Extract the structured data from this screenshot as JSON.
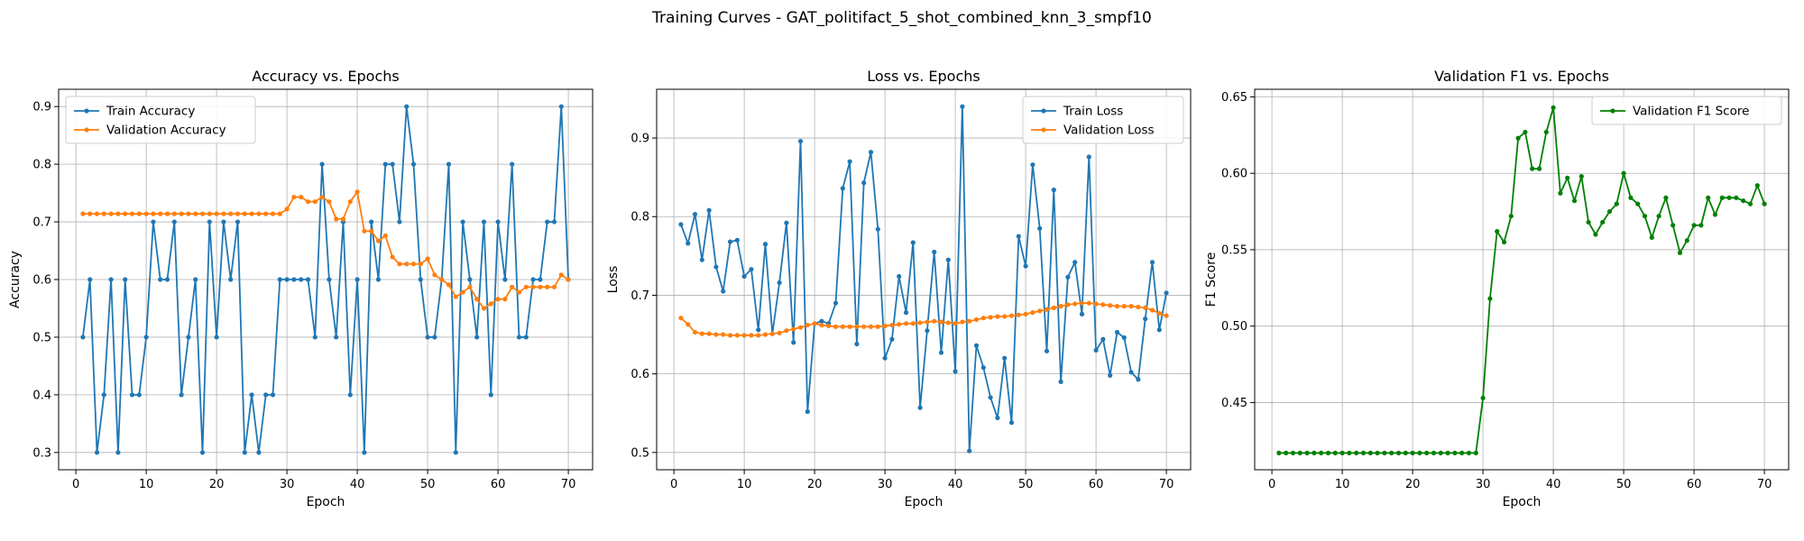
{
  "figure": {
    "title": "Training Curves - GAT_politifact_5_shot_combined_knn_3_smpf10"
  },
  "chart_data": [
    {
      "type": "line",
      "title": "Accuracy vs. Epochs",
      "xlabel": "Epoch",
      "ylabel": "Accuracy",
      "xlim": [
        -2.45,
        73.45
      ],
      "ylim": [
        0.27,
        0.93
      ],
      "xticks": [
        0,
        10,
        20,
        30,
        40,
        50,
        60,
        70
      ],
      "yticks": [
        0.3,
        0.4,
        0.5,
        0.6,
        0.7,
        0.8,
        0.9
      ],
      "ytick_labels": [
        "0.3",
        "0.4",
        "0.5",
        "0.6",
        "0.7",
        "0.8",
        "0.9"
      ],
      "grid": true,
      "legend": "upper-left",
      "x_start": 1,
      "series": [
        {
          "name": "Train Accuracy",
          "color": "#1f77b4",
          "values": [
            0.5,
            0.6,
            0.3,
            0.4,
            0.6,
            0.3,
            0.6,
            0.4,
            0.4,
            0.5,
            0.7,
            0.6,
            0.6,
            0.7,
            0.4,
            0.5,
            0.6,
            0.3,
            0.7,
            0.5,
            0.7,
            0.6,
            0.7,
            0.3,
            0.4,
            0.3,
            0.4,
            0.4,
            0.6,
            0.6,
            0.6,
            0.6,
            0.6,
            0.5,
            0.8,
            0.6,
            0.5,
            0.7,
            0.4,
            0.6,
            0.3,
            0.7,
            0.6,
            0.8,
            0.8,
            0.7,
            0.9,
            0.8,
            0.6,
            0.5,
            0.5,
            0.6,
            0.8,
            0.3,
            0.7,
            0.6,
            0.5,
            0.7,
            0.4,
            0.7,
            0.6,
            0.8,
            0.5,
            0.5,
            0.6,
            0.6,
            0.7,
            0.7,
            0.9,
            0.6
          ]
        },
        {
          "name": "Validation Accuracy",
          "color": "#ff7f0e",
          "values": [
            0.714,
            0.714,
            0.714,
            0.714,
            0.714,
            0.714,
            0.714,
            0.714,
            0.714,
            0.714,
            0.714,
            0.714,
            0.714,
            0.714,
            0.714,
            0.714,
            0.714,
            0.714,
            0.714,
            0.714,
            0.714,
            0.714,
            0.714,
            0.714,
            0.714,
            0.714,
            0.714,
            0.714,
            0.714,
            0.722,
            0.743,
            0.743,
            0.735,
            0.735,
            0.743,
            0.735,
            0.705,
            0.705,
            0.735,
            0.752,
            0.684,
            0.684,
            0.667,
            0.676,
            0.639,
            0.627,
            0.627,
            0.627,
            0.627,
            0.636,
            0.608,
            0.6,
            0.591,
            0.57,
            0.578,
            0.587,
            0.566,
            0.55,
            0.558,
            0.566,
            0.566,
            0.587,
            0.578,
            0.587,
            0.587,
            0.587,
            0.587,
            0.587,
            0.608,
            0.6
          ]
        }
      ]
    },
    {
      "type": "line",
      "title": "Loss vs. Epochs",
      "xlabel": "Epoch",
      "ylabel": "Loss",
      "xlim": [
        -2.45,
        73.45
      ],
      "ylim": [
        0.478,
        0.962
      ],
      "xticks": [
        0,
        10,
        20,
        30,
        40,
        50,
        60,
        70
      ],
      "yticks": [
        0.5,
        0.6,
        0.7,
        0.8,
        0.9
      ],
      "ytick_labels": [
        "0.5",
        "0.6",
        "0.7",
        "0.8",
        "0.9"
      ],
      "grid": true,
      "legend": "upper-right",
      "x_start": 1,
      "series": [
        {
          "name": "Train Loss",
          "color": "#1f77b4",
          "values": [
            0.79,
            0.766,
            0.803,
            0.745,
            0.808,
            0.736,
            0.705,
            0.768,
            0.77,
            0.724,
            0.733,
            0.656,
            0.765,
            0.651,
            0.716,
            0.792,
            0.64,
            0.896,
            0.552,
            0.664,
            0.667,
            0.664,
            0.69,
            0.836,
            0.87,
            0.638,
            0.843,
            0.882,
            0.784,
            0.62,
            0.644,
            0.724,
            0.678,
            0.767,
            0.557,
            0.655,
            0.755,
            0.627,
            0.745,
            0.603,
            0.94,
            0.502,
            0.636,
            0.608,
            0.57,
            0.544,
            0.62,
            0.538,
            0.775,
            0.737,
            0.866,
            0.785,
            0.629,
            0.834,
            0.59,
            0.723,
            0.742,
            0.676,
            0.876,
            0.63,
            0.644,
            0.598,
            0.653,
            0.646,
            0.602,
            0.593,
            0.67,
            0.742,
            0.656,
            0.703
          ]
        },
        {
          "name": "Validation Loss",
          "color": "#ff7f0e",
          "values": [
            0.671,
            0.663,
            0.653,
            0.651,
            0.651,
            0.65,
            0.65,
            0.649,
            0.649,
            0.649,
            0.649,
            0.649,
            0.65,
            0.651,
            0.652,
            0.655,
            0.657,
            0.659,
            0.662,
            0.664,
            0.662,
            0.661,
            0.66,
            0.66,
            0.66,
            0.66,
            0.66,
            0.66,
            0.66,
            0.661,
            0.662,
            0.663,
            0.664,
            0.664,
            0.665,
            0.666,
            0.667,
            0.666,
            0.665,
            0.664,
            0.666,
            0.667,
            0.669,
            0.671,
            0.672,
            0.673,
            0.673,
            0.674,
            0.675,
            0.676,
            0.678,
            0.68,
            0.682,
            0.684,
            0.686,
            0.688,
            0.689,
            0.69,
            0.69,
            0.689,
            0.688,
            0.687,
            0.686,
            0.686,
            0.686,
            0.685,
            0.684,
            0.681,
            0.677,
            0.674
          ]
        }
      ]
    },
    {
      "type": "line",
      "title": "Validation F1 vs. Epochs",
      "xlabel": "Epoch",
      "ylabel": "F1 Score",
      "xlim": [
        -2.45,
        73.45
      ],
      "ylim": [
        0.406,
        0.655
      ],
      "xticks": [
        0,
        10,
        20,
        30,
        40,
        50,
        60,
        70
      ],
      "yticks": [
        0.45,
        0.5,
        0.55,
        0.6,
        0.65
      ],
      "ytick_labels": [
        "0.45",
        "0.50",
        "0.55",
        "0.60",
        "0.65"
      ],
      "grid": true,
      "legend": "upper-right",
      "x_start": 1,
      "series": [
        {
          "name": "Validation F1 Score",
          "color": "#008000",
          "values": [
            0.417,
            0.417,
            0.417,
            0.417,
            0.417,
            0.417,
            0.417,
            0.417,
            0.417,
            0.417,
            0.417,
            0.417,
            0.417,
            0.417,
            0.417,
            0.417,
            0.417,
            0.417,
            0.417,
            0.417,
            0.417,
            0.417,
            0.417,
            0.417,
            0.417,
            0.417,
            0.417,
            0.417,
            0.417,
            0.453,
            0.518,
            0.562,
            0.555,
            0.572,
            0.623,
            0.627,
            0.603,
            0.603,
            0.627,
            0.643,
            0.587,
            0.597,
            0.582,
            0.598,
            0.568,
            0.56,
            0.568,
            0.575,
            0.58,
            0.6,
            0.584,
            0.58,
            0.572,
            0.558,
            0.572,
            0.584,
            0.566,
            0.548,
            0.556,
            0.566,
            0.566,
            0.584,
            0.573,
            0.584,
            0.584,
            0.584,
            0.582,
            0.58,
            0.592,
            0.58
          ]
        }
      ]
    }
  ]
}
